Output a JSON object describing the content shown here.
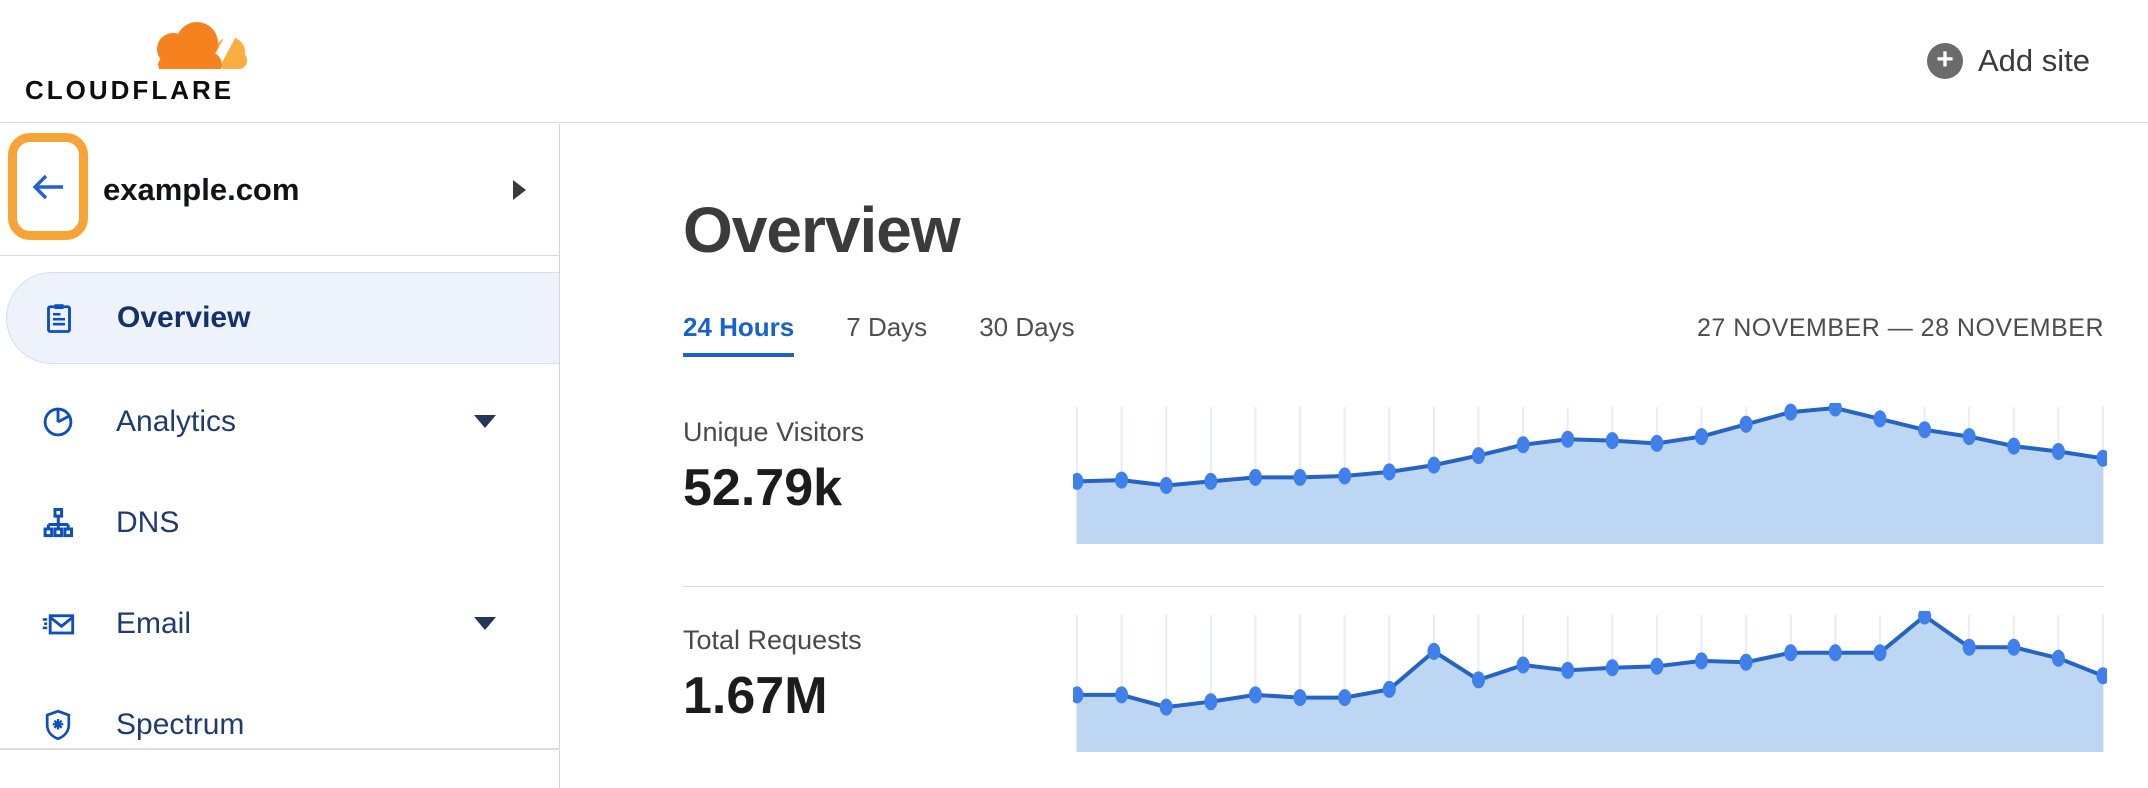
{
  "header": {
    "logo_text": "CLOUDFLARE",
    "add_site_label": "Add site"
  },
  "sidebar": {
    "site": {
      "name": "example.com"
    },
    "items": [
      {
        "label": "Overview",
        "icon": "clipboard-icon",
        "selected": true,
        "expandable": false
      },
      {
        "label": "Analytics",
        "icon": "pie-chart-icon",
        "selected": false,
        "expandable": true
      },
      {
        "label": "DNS",
        "icon": "sitemap-icon",
        "selected": false,
        "expandable": false
      },
      {
        "label": "Email",
        "icon": "email-icon",
        "selected": false,
        "expandable": true
      },
      {
        "label": "Spectrum",
        "icon": "shield-icon",
        "selected": false,
        "expandable": false
      }
    ]
  },
  "main": {
    "title": "Overview",
    "tabs": [
      {
        "label": "24 Hours",
        "active": true
      },
      {
        "label": "7 Days",
        "active": false
      },
      {
        "label": "30 Days",
        "active": false
      }
    ],
    "date_range": "27 NOVEMBER — 28 NOVEMBER",
    "metrics": [
      {
        "label": "Unique Visitors",
        "value": "52.79k"
      },
      {
        "label": "Total Requests",
        "value": "1.67M"
      }
    ]
  },
  "colors": {
    "logo_orange": "#F6821F",
    "logo_orange_light": "#FBAD41",
    "highlight_orange": "#F7A437",
    "back_arrow_blue": "#2161D3",
    "nav_icon_blue": "#0C4FC0",
    "nav_text_navy": "#1E3C72",
    "selected_pill_bg": "#EDF2FB",
    "tab_active_blue": "#1862CE",
    "chart_dot": "#3F80EA",
    "chart_line": "#2563C4",
    "chart_fill": "#BDD6F3",
    "chart_grid": "#E9ECF1",
    "divider": "#D9D9D9"
  },
  "chart_data": [
    {
      "type": "area",
      "title": "Unique Visitors",
      "displayed_total": "52.79k",
      "x_range": "27 November — 28 November (24 Hours view, hourly points)",
      "axis_labels_shown": false,
      "grid": "vertical-only",
      "legend": "none",
      "n_points": 24,
      "ylim": [
        0,
        100
      ],
      "values_percent": [
        46,
        47,
        43,
        46,
        49,
        49,
        50,
        53,
        58,
        65,
        73,
        77,
        76,
        74,
        79,
        88,
        97,
        100,
        92,
        84,
        79,
        72,
        68,
        63
      ]
    },
    {
      "type": "area",
      "title": "Total Requests",
      "displayed_total": "1.67M",
      "x_range": "27 November — 28 November (24 Hours view, hourly points)",
      "axis_labels_shown": false,
      "grid": "vertical-only",
      "legend": "none",
      "n_points": 24,
      "ylim": [
        0,
        100
      ],
      "values_percent": [
        42,
        42,
        33,
        37,
        42,
        40,
        40,
        46,
        74,
        53,
        64,
        60,
        62,
        63,
        67,
        66,
        73,
        73,
        73,
        100,
        77,
        77,
        69,
        56
      ]
    }
  ]
}
